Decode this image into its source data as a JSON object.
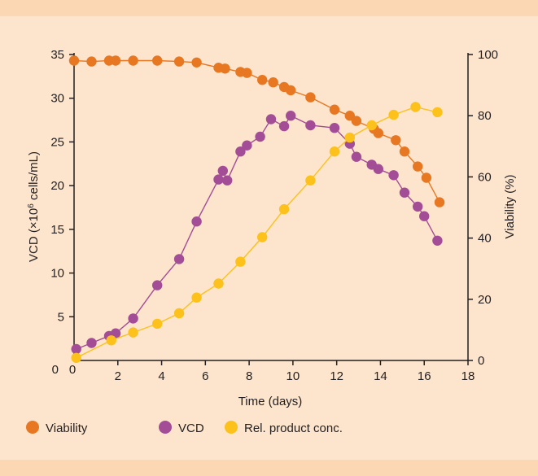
{
  "colors": {
    "background": "#fde4cc",
    "band": "#fbd7b3",
    "axis": "#231f20",
    "viability": "#e87722",
    "vcd": "#a24d96",
    "product": "#fcc11a"
  },
  "chart_data": {
    "type": "line",
    "title": "",
    "xlabel": "Time (days)",
    "ylabel_left": "VCD (×10⁶ cells/mL)",
    "ylabel_left_parts": {
      "before": "VCD (×10",
      "sup": "6",
      "after": " cells/mL)"
    },
    "ylabel_right": "Viability (%)",
    "xlim": [
      0,
      18
    ],
    "ylim_left": [
      0,
      35
    ],
    "ylim_right": [
      0,
      100
    ],
    "x_ticks": [
      "2",
      "4",
      "6",
      "8",
      "10",
      "12",
      "14",
      "16",
      "18"
    ],
    "x_origin_label": "0",
    "y_left_ticks": [
      "0",
      "5",
      "10",
      "15",
      "20",
      "25",
      "30",
      "35"
    ],
    "y_right_ticks": [
      "0",
      "20",
      "40",
      "60",
      "80",
      "100"
    ],
    "grid": false,
    "legend_position": "bottom-left",
    "series": [
      {
        "name": "Viability",
        "axis": "right",
        "color": "#e87722",
        "x": [
          0.0,
          0.8,
          1.6,
          1.9,
          2.7,
          3.8,
          4.8,
          5.6,
          6.6,
          6.9,
          7.6,
          7.9,
          8.6,
          9.1,
          9.6,
          9.9,
          10.8,
          11.9,
          12.6,
          12.9,
          13.7,
          13.9,
          14.7,
          15.1,
          15.7,
          16.1,
          16.7
        ],
        "y": [
          98.0,
          97.7,
          98.0,
          98.0,
          98.0,
          98.0,
          97.7,
          97.4,
          95.7,
          95.4,
          94.3,
          94.0,
          91.7,
          90.9,
          89.4,
          88.3,
          86.0,
          82.0,
          80.0,
          78.3,
          75.7,
          74.3,
          72.0,
          68.3,
          63.4,
          59.7,
          51.7
        ]
      },
      {
        "name": "VCD",
        "axis": "left",
        "color": "#a24d96",
        "x": [
          0.1,
          0.8,
          1.6,
          1.9,
          2.7,
          3.8,
          4.8,
          5.6,
          6.6,
          6.8,
          7.0,
          7.6,
          7.9,
          8.5,
          9.0,
          9.6,
          9.9,
          10.8,
          11.9,
          12.6,
          12.9,
          13.6,
          13.9,
          14.6,
          15.1,
          15.7,
          16.0,
          16.6
        ],
        "y": [
          1.3,
          2.0,
          2.8,
          3.1,
          4.8,
          8.6,
          11.6,
          15.9,
          20.7,
          21.7,
          20.6,
          23.9,
          24.6,
          25.6,
          27.6,
          26.8,
          28.0,
          26.9,
          26.6,
          24.8,
          23.3,
          22.4,
          21.9,
          21.2,
          19.2,
          17.6,
          16.5,
          13.7
        ]
      },
      {
        "name": "Rel. product conc.",
        "axis": "left",
        "color": "#fcc11a",
        "x": [
          0.1,
          1.7,
          2.7,
          3.8,
          4.8,
          5.6,
          6.6,
          7.6,
          8.6,
          9.6,
          10.8,
          11.9,
          12.6,
          13.6,
          14.6,
          15.6,
          16.6
        ],
        "y": [
          0.3,
          2.3,
          3.2,
          4.2,
          5.4,
          7.2,
          8.8,
          11.3,
          14.1,
          17.3,
          20.6,
          23.9,
          25.5,
          26.9,
          28.1,
          29.0,
          28.4
        ]
      }
    ]
  }
}
